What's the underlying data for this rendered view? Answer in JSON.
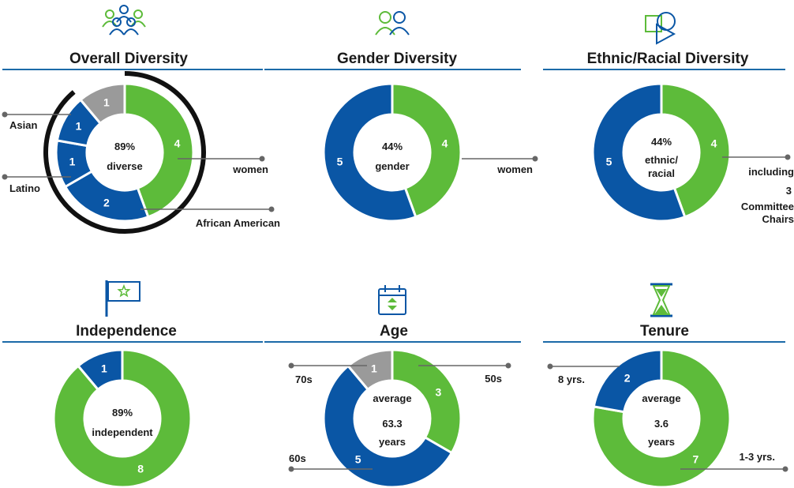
{
  "colors": {
    "green": "#5dbb3a",
    "blue": "#0a56a5",
    "gray": "#9a9a9a",
    "rule": "#1c6aa8",
    "text": "#1a1a1a",
    "ring": "#111111"
  },
  "chart_data": [
    {
      "id": "overall",
      "type": "donut",
      "title": "Overall Diversity",
      "icon": "people-group-icon",
      "center": {
        "big": "89%",
        "lines": [
          "diverse"
        ]
      },
      "slices": [
        {
          "value": 4,
          "label": "4",
          "color": "green"
        },
        {
          "value": 2,
          "label": "2",
          "color": "blue"
        },
        {
          "value": 1,
          "label": "1",
          "color": "blue"
        },
        {
          "value": 1,
          "label": "1",
          "color": "blue"
        },
        {
          "value": 1,
          "label": "1",
          "color": "gray"
        }
      ],
      "callouts": [
        "women",
        "African American",
        "Latino",
        "Asian"
      ]
    },
    {
      "id": "gender",
      "type": "donut",
      "title": "Gender Diversity",
      "icon": "two-people-icon",
      "center": {
        "big": "44%",
        "lines": [
          "gender"
        ]
      },
      "slices": [
        {
          "value": 4,
          "label": "4",
          "color": "green"
        },
        {
          "value": 5,
          "label": "5",
          "color": "blue"
        }
      ],
      "callouts": [
        "women"
      ]
    },
    {
      "id": "ethnic",
      "type": "donut",
      "title": "Ethnic/Racial Diversity",
      "icon": "shapes-icon",
      "center": {
        "big": "44%",
        "lines": [
          "ethnic/",
          "racial"
        ]
      },
      "slices": [
        {
          "value": 4,
          "label": "4",
          "color": "green"
        },
        {
          "value": 5,
          "label": "5",
          "color": "blue"
        }
      ],
      "callouts": [
        "including",
        "3",
        "Committee",
        "Chairs"
      ]
    },
    {
      "id": "independence",
      "type": "donut",
      "title": "Independence",
      "icon": "flag-star-icon",
      "center": {
        "big": "89%",
        "lines": [
          "independent"
        ]
      },
      "slices": [
        {
          "value": 8,
          "label": "8",
          "color": "green"
        },
        {
          "value": 1,
          "label": "1",
          "color": "blue"
        }
      ],
      "callouts": []
    },
    {
      "id": "age",
      "type": "donut",
      "title": "Age",
      "icon": "calendar-icon",
      "center": {
        "big": "63.3",
        "lines": [
          "average",
          "years"
        ]
      },
      "slices": [
        {
          "value": 3,
          "label": "3",
          "color": "green"
        },
        {
          "value": 5,
          "label": "5",
          "color": "blue"
        },
        {
          "value": 1,
          "label": "1",
          "color": "gray"
        }
      ],
      "callouts": [
        "50s",
        "60s",
        "70s"
      ]
    },
    {
      "id": "tenure",
      "type": "donut",
      "title": "Tenure",
      "icon": "hourglass-icon",
      "center": {
        "big": "3.6",
        "lines": [
          "average",
          "years"
        ]
      },
      "slices": [
        {
          "value": 7,
          "label": "7",
          "color": "green"
        },
        {
          "value": 2,
          "label": "2",
          "color": "blue"
        }
      ],
      "callouts": [
        "1-3 yrs.",
        "8 yrs."
      ]
    }
  ]
}
